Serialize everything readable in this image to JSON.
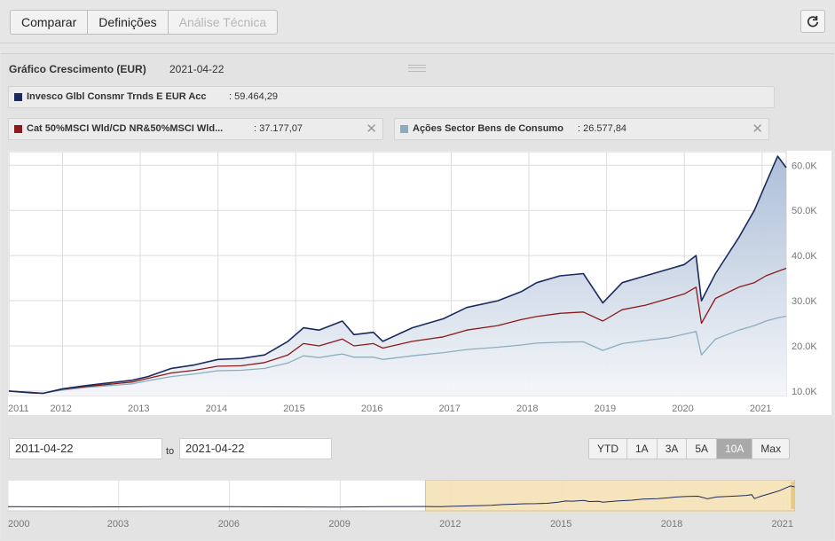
{
  "toolbar": {
    "tabs": [
      {
        "label": "Comparar",
        "enabled": true
      },
      {
        "label": "Definições",
        "enabled": true
      },
      {
        "label": "Análise Técnica",
        "enabled": false
      }
    ],
    "refresh_icon": "refresh-icon"
  },
  "chart_header": {
    "title": "Gráfico Crescimento (EUR)",
    "date": "2021-04-22"
  },
  "legend": [
    {
      "name": "Invesco Glbl Consmr Trnds E EUR Acc",
      "value": ": 59.464,29",
      "color": "#1b2a5e",
      "removable": false
    },
    {
      "name": "Cat 50%MSCI Wld/CD NR&50%MSCI Wld...",
      "value": ": 37.177,07",
      "color": "#8b1a1a",
      "removable": true
    },
    {
      "name": "Ações Sector Bens de Consumo",
      "value": ": 26.577,84",
      "color": "#8aaec0",
      "removable": true
    }
  ],
  "chart_data": {
    "type": "line",
    "x": [
      2011.31,
      2011.6,
      2011.75,
      2012.0,
      2012.3,
      2012.6,
      2012.9,
      2013.1,
      2013.4,
      2013.7,
      2014.0,
      2014.3,
      2014.6,
      2014.9,
      2015.1,
      2015.3,
      2015.6,
      2015.75,
      2016.0,
      2016.12,
      2016.5,
      2016.9,
      2017.2,
      2017.6,
      2017.9,
      2018.1,
      2018.4,
      2018.7,
      2018.95,
      2019.2,
      2019.5,
      2019.8,
      2020.0,
      2020.15,
      2020.22,
      2020.4,
      2020.7,
      2020.9,
      2021.05,
      2021.2,
      2021.31
    ],
    "series": [
      {
        "name": "Invesco Glbl Consmr Trnds E EUR Acc",
        "color": "#1b2a5e",
        "values": [
          10000,
          9600,
          9500,
          10500,
          11200,
          11800,
          12400,
          13200,
          15000,
          15800,
          17000,
          17200,
          18000,
          21000,
          24000,
          23500,
          25500,
          22500,
          23000,
          21000,
          24000,
          26000,
          28500,
          30000,
          32000,
          34000,
          35500,
          36000,
          29500,
          34000,
          35500,
          37000,
          38000,
          40000,
          30000,
          36000,
          44000,
          50000,
          56000,
          62000,
          59464
        ]
      },
      {
        "name": "Cat 50%MSCI Wld/CD NR&50%MSCI Wld...",
        "color": "#8b1a1a",
        "values": [
          10000,
          9700,
          9500,
          10400,
          11000,
          11500,
          12000,
          12800,
          14000,
          14600,
          15500,
          15600,
          16300,
          18000,
          20500,
          20000,
          21500,
          20000,
          20500,
          19500,
          21000,
          22000,
          23500,
          24500,
          25800,
          26500,
          27200,
          27500,
          25500,
          28000,
          29000,
          30500,
          31500,
          33000,
          25000,
          30500,
          33000,
          34000,
          35500,
          36500,
          37177
        ]
      },
      {
        "name": "Ações Sector Bens de Consumo",
        "color": "#8aaec0",
        "values": [
          10000,
          9650,
          9550,
          10200,
          10800,
          11200,
          11600,
          12300,
          13200,
          13800,
          14500,
          14600,
          15000,
          16200,
          17800,
          17400,
          18200,
          17500,
          17500,
          17000,
          17800,
          18500,
          19200,
          19700,
          20200,
          20600,
          20800,
          20900,
          19000,
          20500,
          21200,
          21800,
          22600,
          23200,
          18000,
          21500,
          23500,
          24500,
          25500,
          26200,
          26578
        ]
      }
    ],
    "xlim": [
      2011.31,
      2021.31
    ],
    "ylim": [
      9000,
      63000
    ],
    "x_ticks": [
      "2011",
      "2012",
      "2013",
      "2014",
      "2015",
      "2016",
      "2017",
      "2018",
      "2019",
      "2020",
      "2021"
    ],
    "y_ticks": [
      "10.0K",
      "20.0K",
      "30.0K",
      "40.0K",
      "50.0K",
      "60.0K"
    ],
    "y_tick_values": [
      10000,
      20000,
      30000,
      40000,
      50000,
      60000
    ],
    "grid": true
  },
  "range_selector": {
    "from": "2011-04-22",
    "to_label": "to",
    "to": "2021-04-22",
    "buttons": [
      "YTD",
      "1A",
      "3A",
      "5A",
      "10A",
      "Max"
    ],
    "active": "10A"
  },
  "navigator": {
    "x_ticks": [
      "2000",
      "2003",
      "2006",
      "2009",
      "2012",
      "2015",
      "2018",
      "2021"
    ],
    "x_tick_values": [
      2000,
      2003,
      2006,
      2009,
      2012,
      2015,
      2018,
      2021
    ],
    "xlim": [
      2000,
      2021.3
    ],
    "selection": [
      2011.31,
      2021.31
    ]
  }
}
